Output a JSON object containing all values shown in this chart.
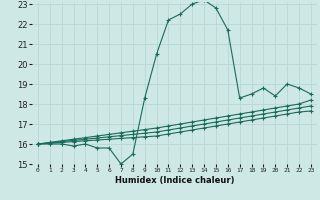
{
  "xlabel": "Humidex (Indice chaleur)",
  "ylabel": "",
  "bg_color": "#cde8e5",
  "line_color": "#1a6b5a",
  "grid_color": "#b8d8d4",
  "x_values": [
    0,
    1,
    2,
    3,
    4,
    5,
    6,
    7,
    8,
    9,
    10,
    11,
    12,
    13,
    14,
    15,
    16,
    17,
    18,
    19,
    20,
    21,
    22,
    23
  ],
  "series1": [
    16.0,
    16.0,
    16.0,
    15.9,
    16.0,
    15.8,
    15.8,
    15.0,
    15.5,
    18.3,
    20.5,
    22.2,
    22.5,
    23.0,
    23.2,
    22.8,
    21.7,
    18.3,
    18.5,
    18.8,
    18.4,
    19.0,
    18.8,
    18.5
  ],
  "series2": [
    16.0,
    16.04,
    16.08,
    16.12,
    16.16,
    16.2,
    16.24,
    16.28,
    16.32,
    16.36,
    16.4,
    16.5,
    16.6,
    16.7,
    16.8,
    16.9,
    17.0,
    17.1,
    17.2,
    17.3,
    17.4,
    17.5,
    17.6,
    17.65
  ],
  "series3": [
    16.0,
    16.06,
    16.12,
    16.18,
    16.24,
    16.3,
    16.36,
    16.42,
    16.48,
    16.54,
    16.6,
    16.7,
    16.8,
    16.9,
    17.0,
    17.1,
    17.2,
    17.3,
    17.4,
    17.5,
    17.6,
    17.7,
    17.8,
    17.9
  ],
  "series4": [
    16.0,
    16.08,
    16.16,
    16.24,
    16.32,
    16.4,
    16.48,
    16.56,
    16.64,
    16.72,
    16.8,
    16.9,
    17.0,
    17.1,
    17.2,
    17.3,
    17.4,
    17.5,
    17.6,
    17.7,
    17.8,
    17.9,
    18.0,
    18.2
  ],
  "ylim": [
    15,
    23
  ],
  "xlim": [
    -0.5,
    23.5
  ],
  "yticks": [
    15,
    16,
    17,
    18,
    19,
    20,
    21,
    22,
    23
  ],
  "xticks": [
    0,
    1,
    2,
    3,
    4,
    5,
    6,
    7,
    8,
    9,
    10,
    11,
    12,
    13,
    14,
    15,
    16,
    17,
    18,
    19,
    20,
    21,
    22,
    23
  ],
  "markersize": 3,
  "linewidth": 0.8
}
